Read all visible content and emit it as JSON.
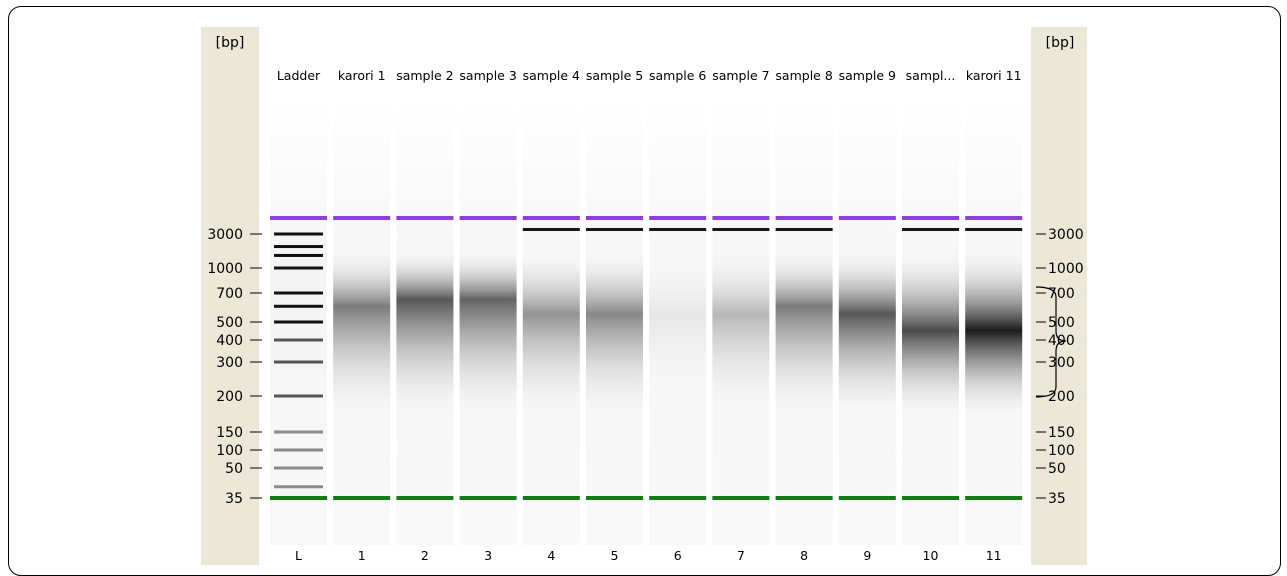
{
  "axis": {
    "unit_left": "[bp]",
    "unit_right": "[bp]",
    "ticks": [
      {
        "label": "3000",
        "bp": 3000
      },
      {
        "label": "1000",
        "bp": 1000
      },
      {
        "label": "700",
        "bp": 700
      },
      {
        "label": "500",
        "bp": 500
      },
      {
        "label": "400",
        "bp": 400
      },
      {
        "label": "300",
        "bp": 300
      },
      {
        "label": "200",
        "bp": 200
      },
      {
        "label": "150",
        "bp": 150
      },
      {
        "label": "100",
        "bp": 100
      },
      {
        "label": "50",
        "bp": 50
      },
      {
        "label": "35",
        "bp": 35
      }
    ]
  },
  "markers": {
    "upper_color": "#8f3fd6",
    "lower_color": "#137b13"
  },
  "lanes": [
    {
      "number": "L",
      "name": "Ladder",
      "ladder": true
    },
    {
      "number": "1",
      "name": "karori 1",
      "smear_intensity": 0.55,
      "smear_center_bp": 600,
      "upper_marker": true
    },
    {
      "number": "2",
      "name": "sample 2",
      "smear_intensity": 0.7,
      "smear_center_bp": 650,
      "upper_marker": true
    },
    {
      "number": "3",
      "name": "sample 3",
      "smear_intensity": 0.65,
      "smear_center_bp": 650,
      "upper_marker": true
    },
    {
      "number": "4",
      "name": "sample 4",
      "smear_intensity": 0.45,
      "smear_center_bp": 550,
      "upper_marker": true,
      "hmw_band": true
    },
    {
      "number": "5",
      "name": "sample 5",
      "smear_intensity": 0.5,
      "smear_center_bp": 550,
      "upper_marker": true,
      "hmw_band": true
    },
    {
      "number": "6",
      "name": "sample 6",
      "smear_intensity": 0.1,
      "smear_center_bp": 550,
      "upper_marker": true,
      "hmw_band": true
    },
    {
      "number": "7",
      "name": "sample 7",
      "smear_intensity": 0.3,
      "smear_center_bp": 550,
      "upper_marker": true,
      "hmw_band": true
    },
    {
      "number": "8",
      "name": "sample 8",
      "smear_intensity": 0.55,
      "smear_center_bp": 600,
      "upper_marker": true,
      "hmw_band": true
    },
    {
      "number": "9",
      "name": "sample 9",
      "smear_intensity": 0.7,
      "smear_center_bp": 550,
      "upper_marker": true,
      "hmw_band": false
    },
    {
      "number": "10",
      "name": "sampl...",
      "smear_intensity": 0.75,
      "smear_center_bp": 450,
      "upper_marker": true,
      "hmw_band": true
    },
    {
      "number": "11",
      "name": "karori 11",
      "smear_intensity": 0.95,
      "smear_center_bp": 450,
      "upper_marker": true,
      "hmw_band": true
    }
  ],
  "ladder_bands_bp": [
    3000,
    2000,
    1500,
    1000,
    700,
    600,
    500,
    400,
    300,
    200,
    150,
    100,
    50,
    40,
    35
  ]
}
